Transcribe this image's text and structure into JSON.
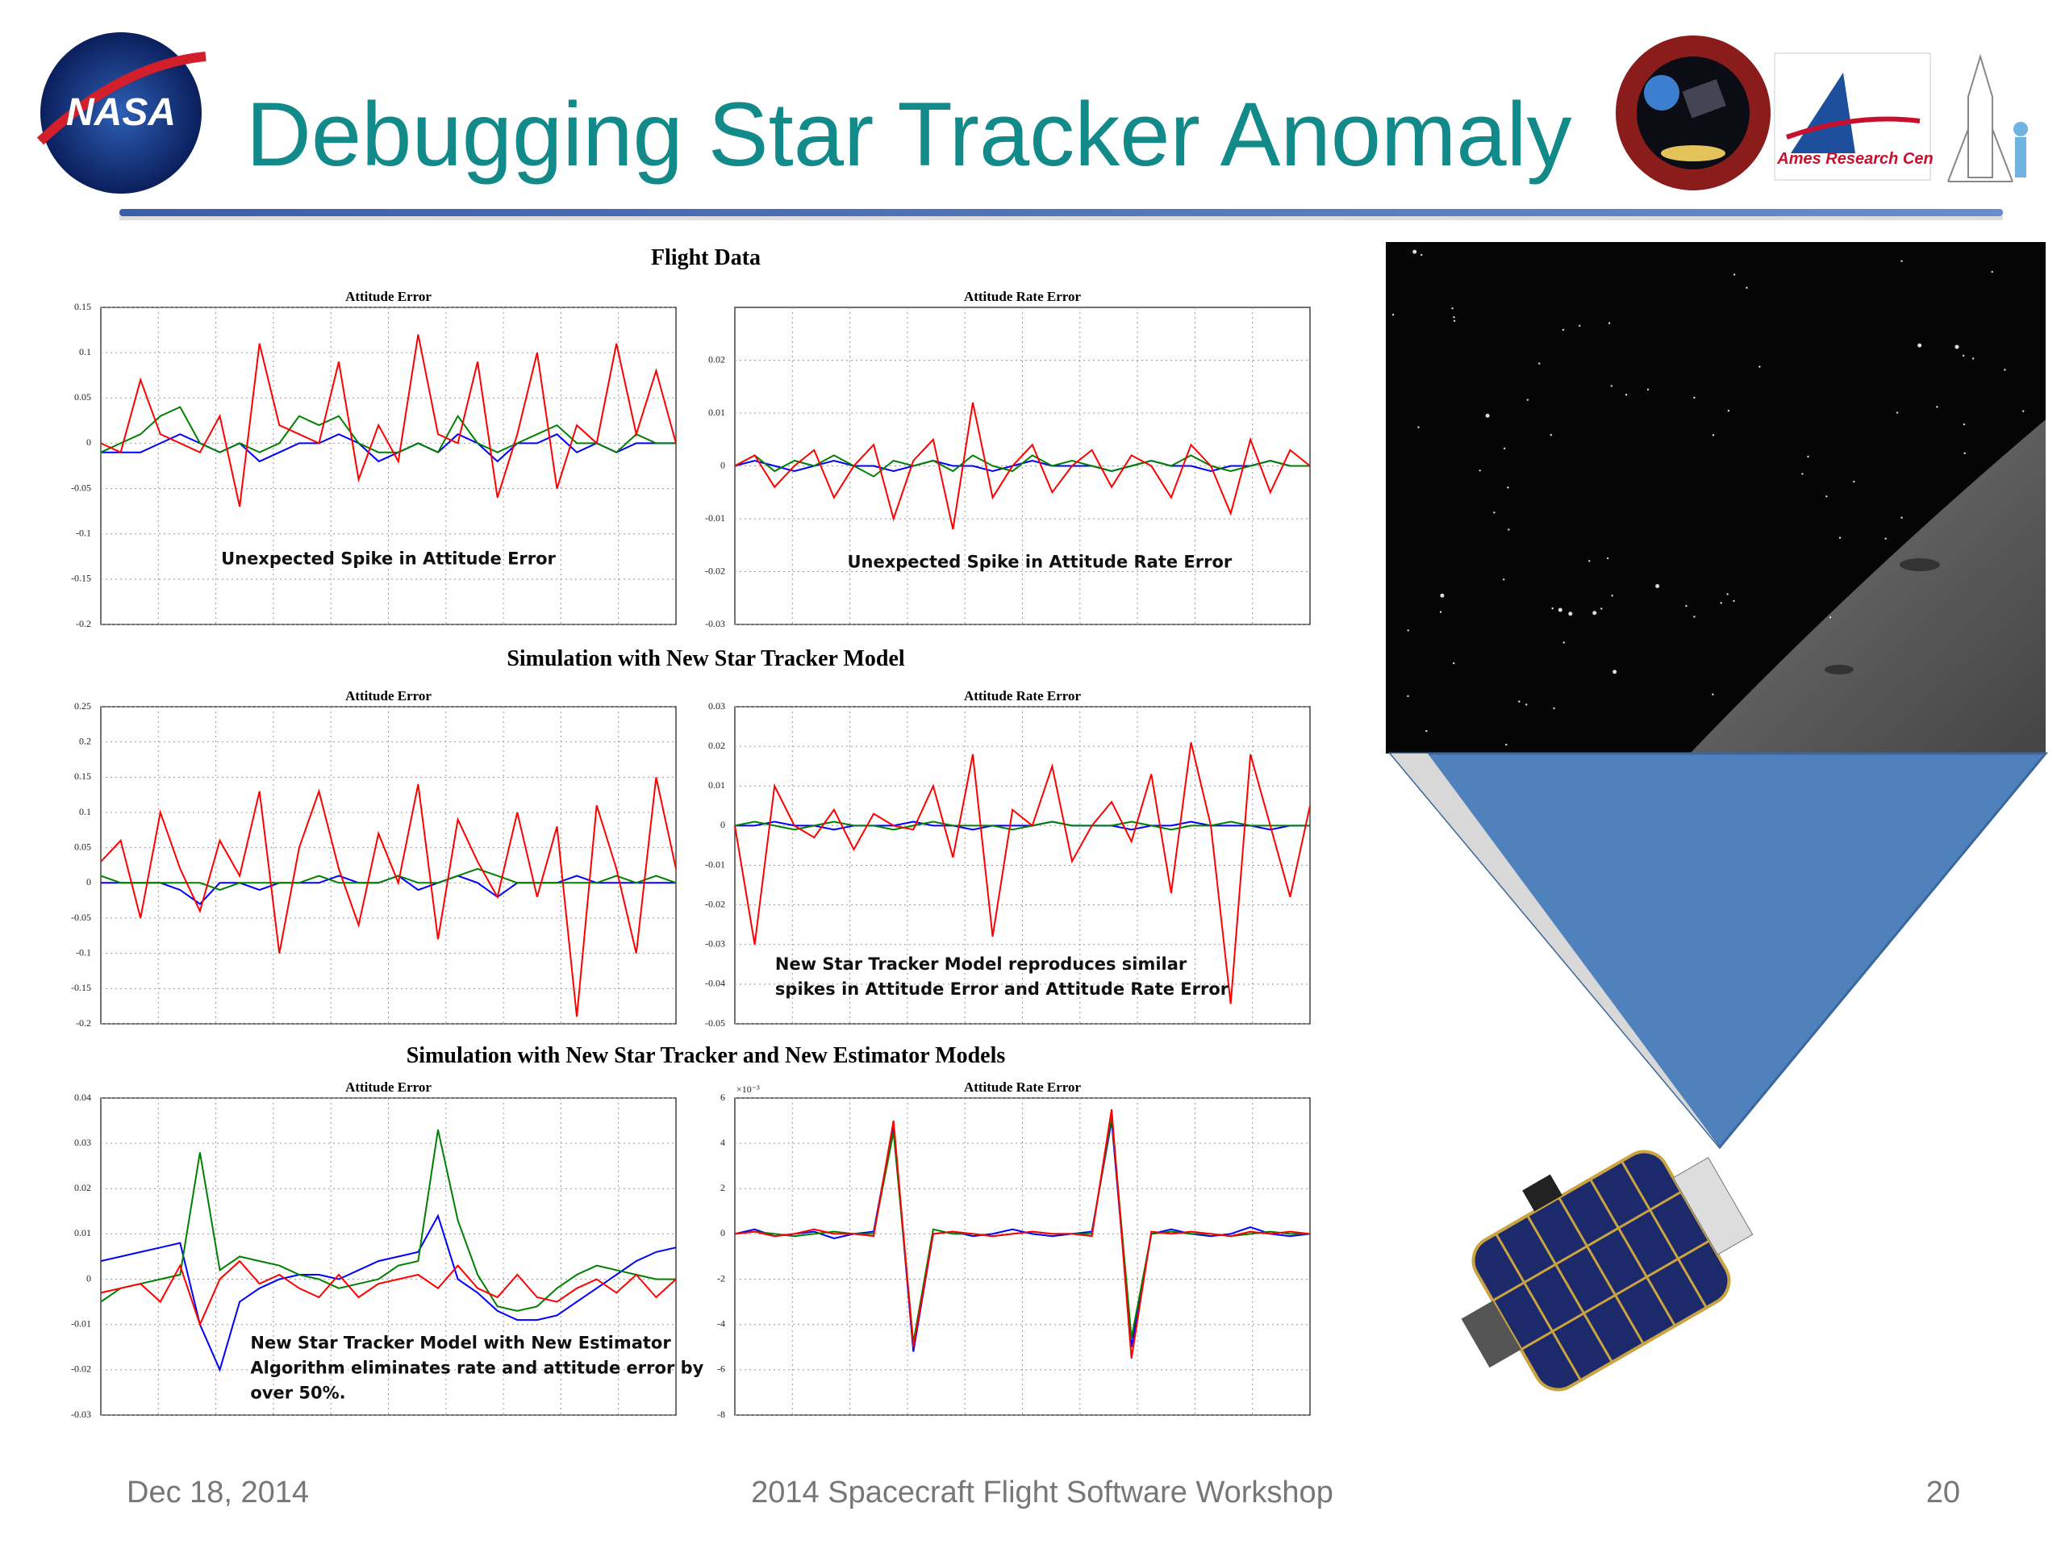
{
  "header": {
    "title": "Debugging Star Tracker Anomaly",
    "logos": [
      "NASA",
      "Ames Research Cen"
    ]
  },
  "sections": [
    {
      "title": "Flight Data",
      "charts": [
        {
          "type": "line",
          "title": "Attitude Error",
          "ylim": [
            -0.2,
            0.15
          ],
          "yticks": [
            0.15,
            0.1,
            0.05,
            0,
            -0.05,
            -0.1,
            -0.15,
            -0.2
          ],
          "grid": true,
          "annotation": [
            "Unexpected Spike in Attitude Error"
          ],
          "series": [
            {
              "color": "#0000ff",
              "values": [
                -0.01,
                -0.01,
                -0.01,
                0,
                0.01,
                0,
                -0.01,
                0,
                -0.02,
                -0.01,
                0,
                0,
                0.01,
                0,
                -0.02,
                -0.01,
                0,
                -0.01,
                0.01,
                0,
                -0.02,
                0,
                0,
                0.01,
                -0.01,
                0,
                -0.01,
                0,
                0,
                0
              ]
            },
            {
              "color": "#008000",
              "values": [
                -0.01,
                0,
                0.01,
                0.03,
                0.04,
                0,
                -0.01,
                0,
                -0.01,
                0,
                0.03,
                0.02,
                0.03,
                0,
                -0.01,
                -0.01,
                0,
                -0.01,
                0.03,
                0,
                -0.01,
                0,
                0.01,
                0.02,
                0,
                0,
                -0.01,
                0.01,
                0,
                0
              ]
            },
            {
              "color": "#ff0000",
              "values": [
                0,
                -0.01,
                0.07,
                0.01,
                0,
                -0.01,
                0.03,
                -0.07,
                0.11,
                0.02,
                0.01,
                0,
                0.09,
                -0.04,
                0.02,
                -0.02,
                0.12,
                0.01,
                0,
                0.09,
                -0.06,
                0.01,
                0.1,
                -0.05,
                0.02,
                0,
                0.11,
                0.01,
                0.08,
                0
              ]
            }
          ]
        },
        {
          "type": "line",
          "title": "Attitude Rate Error",
          "ylim": [
            -0.03,
            0.03
          ],
          "yticks": [
            0.02,
            0.01,
            0,
            -0.01,
            -0.02,
            -0.03
          ],
          "grid": true,
          "annotation": [
            "Unexpected Spike in Attitude Rate Error"
          ],
          "series": [
            {
              "color": "#0000ff",
              "values": [
                0,
                0.001,
                0,
                -0.001,
                0,
                0.001,
                0,
                0,
                -0.001,
                0,
                0.001,
                0,
                0,
                -0.001,
                0,
                0.001,
                0,
                0,
                0,
                -0.001,
                0,
                0.001,
                0,
                0,
                -0.001,
                0,
                0,
                0.001,
                0,
                0
              ]
            },
            {
              "color": "#008000",
              "values": [
                0,
                0.002,
                -0.001,
                0.001,
                0,
                0.002,
                0,
                -0.002,
                0.001,
                0,
                0.001,
                -0.001,
                0.002,
                0,
                -0.001,
                0.002,
                0,
                0.001,
                0,
                -0.001,
                0,
                0.001,
                0,
                0.002,
                0,
                -0.001,
                0,
                0.001,
                0,
                0
              ]
            },
            {
              "color": "#ff0000",
              "values": [
                0,
                0.002,
                -0.004,
                0,
                0.003,
                -0.006,
                0,
                0.004,
                -0.01,
                0.001,
                0.005,
                -0.012,
                0.012,
                -0.006,
                0,
                0.004,
                -0.005,
                0,
                0.003,
                -0.004,
                0.002,
                0,
                -0.006,
                0.004,
                0,
                -0.009,
                0.005,
                -0.005,
                0.003,
                0
              ]
            }
          ]
        }
      ]
    },
    {
      "title": "Simulation with New Star Tracker Model",
      "charts": [
        {
          "type": "line",
          "title": "Attitude Error",
          "ylim": [
            -0.2,
            0.25
          ],
          "yticks": [
            0.25,
            0.2,
            0.15,
            0.1,
            0.05,
            0,
            -0.05,
            -0.1,
            -0.15,
            -0.2
          ],
          "grid": true,
          "annotation": [],
          "series": [
            {
              "color": "#0000ff",
              "values": [
                0,
                0,
                0,
                0,
                -0.01,
                -0.03,
                0,
                0,
                -0.01,
                0,
                0,
                0,
                0.01,
                0,
                0,
                0.01,
                -0.01,
                0,
                0.01,
                0,
                -0.02,
                0,
                0,
                0,
                0.01,
                0,
                0,
                0,
                0,
                0
              ]
            },
            {
              "color": "#008000",
              "values": [
                0.01,
                0,
                0,
                0,
                0,
                0,
                -0.01,
                0,
                0,
                0,
                0,
                0.01,
                0,
                0,
                0,
                0.01,
                0,
                0,
                0.01,
                0.02,
                0.01,
                0,
                0,
                0,
                0,
                0,
                0.01,
                0,
                0.01,
                0
              ]
            },
            {
              "color": "#ff0000",
              "values": [
                0.03,
                0.06,
                -0.05,
                0.1,
                0.02,
                -0.04,
                0.06,
                0.01,
                0.13,
                -0.1,
                0.05,
                0.13,
                0.02,
                -0.06,
                0.07,
                0,
                0.14,
                -0.08,
                0.09,
                0.03,
                -0.02,
                0.1,
                -0.02,
                0.08,
                -0.19,
                0.11,
                0.02,
                -0.1,
                0.15,
                0.02
              ]
            }
          ]
        },
        {
          "type": "line",
          "title": "Attitude Rate Error",
          "ylim": [
            -0.05,
            0.03
          ],
          "yticks": [
            0.03,
            0.02,
            0.01,
            0,
            -0.01,
            -0.02,
            -0.03,
            -0.04,
            -0.05
          ],
          "grid": true,
          "annotation": [
            "New Star Tracker Model reproduces similar",
            "spikes in Attitude Error and Attitude Rate Error"
          ],
          "series": [
            {
              "color": "#0000ff",
              "values": [
                0,
                0,
                0.001,
                0,
                0,
                -0.001,
                0,
                0,
                0,
                0.001,
                0,
                0,
                -0.001,
                0,
                0,
                0,
                0.001,
                0,
                0,
                0,
                -0.001,
                0,
                0,
                0.001,
                0,
                0,
                0,
                -0.001,
                0,
                0
              ]
            },
            {
              "color": "#008000",
              "values": [
                0,
                0.001,
                0,
                -0.001,
                0,
                0.001,
                0,
                0,
                -0.001,
                0,
                0.001,
                0,
                0,
                0,
                -0.001,
                0,
                0.001,
                0,
                0,
                0,
                0.001,
                0,
                -0.001,
                0,
                0,
                0.001,
                0,
                0,
                0,
                0
              ]
            },
            {
              "color": "#ff0000",
              "values": [
                0,
                -0.03,
                0.01,
                0,
                -0.003,
                0.004,
                -0.006,
                0.003,
                0,
                -0.001,
                0.01,
                -0.008,
                0.018,
                -0.028,
                0.004,
                0,
                0.015,
                -0.009,
                0,
                0.006,
                -0.004,
                0.013,
                -0.017,
                0.021,
                0,
                -0.045,
                0.018,
                0,
                -0.018,
                0.005
              ]
            }
          ]
        }
      ]
    },
    {
      "title": "Simulation with New Star Tracker and New Estimator Models",
      "charts": [
        {
          "type": "line",
          "title": "Attitude Error",
          "ylim": [
            -0.03,
            0.04
          ],
          "yticks": [
            0.04,
            0.03,
            0.02,
            0.01,
            0,
            -0.01,
            -0.02,
            -0.03
          ],
          "grid": true,
          "annotation": [
            "New Star Tracker Model with New Estimator",
            "Algorithm eliminates rate and attitude error by",
            "over 50%."
          ],
          "series": [
            {
              "color": "#0000ff",
              "values": [
                0.004,
                0.005,
                0.006,
                0.007,
                0.008,
                -0.01,
                -0.02,
                -0.005,
                -0.002,
                0,
                0.001,
                0.001,
                0,
                0.002,
                0.004,
                0.005,
                0.006,
                0.014,
                0,
                -0.003,
                -0.007,
                -0.009,
                -0.009,
                -0.008,
                -0.005,
                -0.002,
                0.001,
                0.004,
                0.006,
                0.007
              ]
            },
            {
              "color": "#008000",
              "values": [
                -0.005,
                -0.002,
                -0.001,
                0,
                0.001,
                0.028,
                0.002,
                0.005,
                0.004,
                0.003,
                0.001,
                0,
                -0.002,
                -0.001,
                0,
                0.003,
                0.004,
                0.033,
                0.013,
                0.001,
                -0.006,
                -0.007,
                -0.006,
                -0.002,
                0.001,
                0.003,
                0.002,
                0.001,
                0,
                0
              ]
            },
            {
              "color": "#ff0000",
              "values": [
                -0.003,
                -0.002,
                -0.001,
                -0.005,
                0.003,
                -0.01,
                0,
                0.004,
                -0.001,
                0.001,
                -0.002,
                -0.004,
                0.001,
                -0.004,
                -0.001,
                0,
                0.001,
                -0.002,
                0.003,
                -0.002,
                -0.004,
                0.001,
                -0.004,
                -0.005,
                -0.002,
                0,
                -0.003,
                0.001,
                -0.004,
                0
              ]
            }
          ]
        },
        {
          "type": "line",
          "title": "Attitude Rate Error",
          "y_scale_label": "×10⁻³",
          "ylim": [
            -8,
            6
          ],
          "yticks": [
            6,
            4,
            2,
            0,
            -2,
            -4,
            -6,
            -8
          ],
          "grid": true,
          "annotation": [],
          "series": [
            {
              "color": "#0000ff",
              "values": [
                0,
                0.2,
                -0.1,
                0,
                0.1,
                -0.2,
                0,
                0.1,
                4.8,
                -5.2,
                0,
                0.1,
                -0.1,
                0,
                0.2,
                0,
                -0.1,
                0,
                0.1,
                5,
                -5,
                0,
                0.2,
                0,
                -0.1,
                0,
                0.3,
                0,
                -0.1,
                0
              ]
            },
            {
              "color": "#008000",
              "values": [
                0,
                0.1,
                0,
                -0.1,
                0,
                0.1,
                0,
                0,
                4.5,
                -4.8,
                0.2,
                0,
                0,
                -0.1,
                0,
                0.1,
                0,
                0,
                0,
                5.2,
                -4.6,
                0,
                0.1,
                0,
                0,
                -0.1,
                0,
                0.1,
                0,
                0
              ]
            },
            {
              "color": "#ff0000",
              "values": [
                0,
                0.1,
                -0.1,
                0,
                0.2,
                0,
                0,
                -0.1,
                5,
                -5,
                0,
                0.1,
                0,
                -0.1,
                0,
                0.1,
                0,
                0,
                -0.1,
                5.5,
                -5.5,
                0.1,
                0,
                0.1,
                0,
                -0.1,
                0.1,
                0,
                0.1,
                0
              ]
            }
          ]
        }
      ]
    }
  ],
  "footer": {
    "date": "Dec 18, 2014",
    "event": "2014 Spacecraft Flight Software Workshop",
    "page": "20"
  }
}
